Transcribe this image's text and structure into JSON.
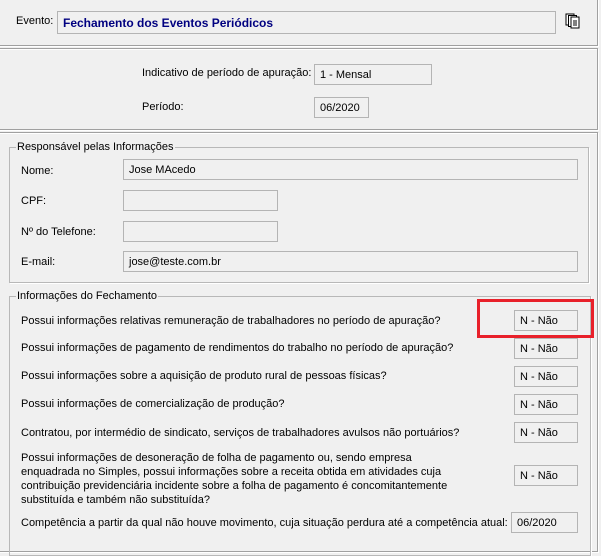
{
  "evento": {
    "label": "Evento:",
    "value": "Fechamento dos Eventos Periódicos",
    "icon": "copy-documents-icon"
  },
  "periodo": {
    "indicativo_label": "Indicativo de período de apuração:",
    "indicativo_value": "1 - Mensal",
    "periodo_label": "Período:",
    "periodo_value": "06/2020"
  },
  "responsavel": {
    "title": "Responsável pelas Informações",
    "nome_label": "Nome:",
    "nome_value": "Jose MAcedo",
    "cpf_label": "CPF:",
    "cpf_value": "",
    "telefone_label": "Nº do Telefone:",
    "telefone_value": "",
    "email_label": "E-mail:",
    "email_value": "jose@teste.com.br"
  },
  "fechamento": {
    "title": "Informações do Fechamento",
    "questions": [
      {
        "text": "Possui informações relativas remuneração de trabalhadores no período de apuração?",
        "value": "N - Não"
      },
      {
        "text": "Possui informações de pagamento de rendimentos do trabalho no período de apuração?",
        "value": "N - Não"
      },
      {
        "text": "Possui informações sobre a aquisição de produto rural de pessoas físicas?",
        "value": "N - Não"
      },
      {
        "text": "Possui informações de comercialização de produção?",
        "value": "N - Não"
      },
      {
        "text": "Contratou, por intermédio de sindicato, serviços de trabalhadores avulsos não portuários?",
        "value": "N - Não"
      },
      {
        "text": "Possui informações de desoneração de folha de pagamento ou, sendo empresa enquadrada no Simples, possui informações sobre a receita obtida em atividades cuja contribuição previdenciária incidente sobre a folha de pagamento é concomitantemente substituída e também não substituída?",
        "value": "N - Não"
      }
    ],
    "competencia_label": "Competência a partir da qual não houve movimento, cuja situação perdura até a competência atual:",
    "competencia_value": "06/2020"
  },
  "highlight_color": "#e8202a"
}
